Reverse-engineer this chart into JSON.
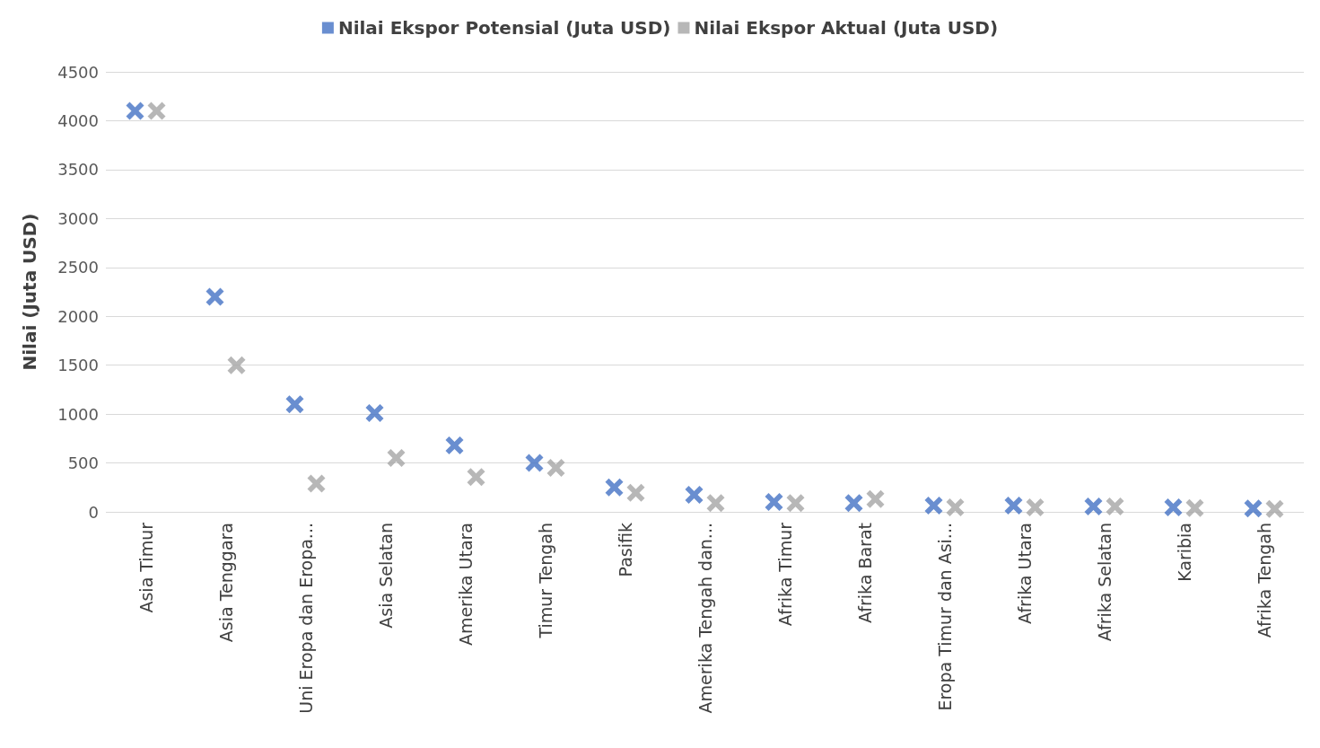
{
  "chart_data": {
    "type": "scatter",
    "ylabel": "Nilai (Juta USD)",
    "categories": [
      "Asia Timur",
      "Asia Tenggara",
      "Uni Eropa dan Eropa...",
      "Asia Selatan",
      "Amerika Utara",
      "Timur Tengah",
      "Pasifik",
      "Amerika Tengah dan...",
      "Afrika Timur",
      "Afrika Barat",
      "Eropa Timur dan Asi...",
      "Afrika Utara",
      "Afrika Selatan",
      "Karibia",
      "Afrika Tengah"
    ],
    "series": [
      {
        "name": "Nilai Ekspor Potensial (Juta USD)",
        "color": "#4472c4",
        "values": [
          4100,
          2200,
          1100,
          1010,
          680,
          500,
          250,
          175,
          100,
          90,
          65,
          65,
          55,
          45,
          35
        ]
      },
      {
        "name": "Nilai Ekspor Aktual (Juta USD)",
        "color": "#a5a5a5",
        "values": [
          4100,
          1500,
          290,
          550,
          355,
          450,
          195,
          90,
          90,
          130,
          45,
          45,
          55,
          40,
          30
        ]
      }
    ],
    "ylim": [
      0,
      4500
    ],
    "yticks": [
      0,
      500,
      1000,
      1500,
      2000,
      2500,
      3000,
      3500,
      4000,
      4500
    ],
    "grid": "y",
    "legend": "top",
    "marker": "cross"
  }
}
